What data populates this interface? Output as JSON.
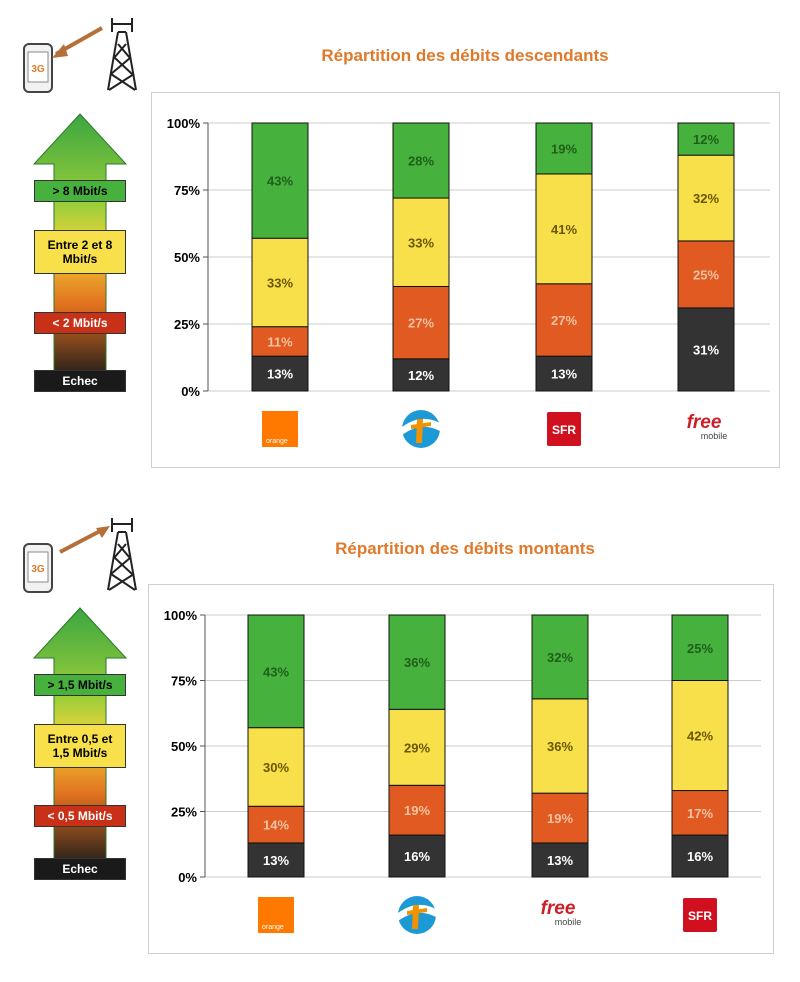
{
  "colors": {
    "high": "#46b13c",
    "high_text": "#1f5f1a",
    "mid": "#f7e04a",
    "mid_text": "#6b5600",
    "low": "#e05a22",
    "low_text": "#f4c2a0",
    "fail": "#333333",
    "fail_text": "#ffffff",
    "title": "#e07a2a"
  },
  "phone_badge": "3G",
  "chart_data": [
    {
      "type": "bar",
      "stacked": true,
      "title": "Répartition des débits descendants",
      "categories": [
        "orange",
        "bouygues",
        "SFR",
        "free mobile"
      ],
      "y_ticks": [
        "0%",
        "25%",
        "50%",
        "75%",
        "100%"
      ],
      "ylim": [
        0,
        100
      ],
      "grid": true,
      "legend_placement": "left",
      "legend": {
        "high": "> 8 Mbit/s",
        "mid_line1": "Entre 2 et 8",
        "mid_line2": "Mbit/s",
        "low": "< 2 Mbit/s",
        "fail": "Echec"
      },
      "series": [
        {
          "key": "fail",
          "values": [
            13,
            12,
            13,
            31
          ]
        },
        {
          "key": "low",
          "values": [
            11,
            27,
            27,
            25
          ]
        },
        {
          "key": "mid",
          "values": [
            33,
            33,
            41,
            32
          ]
        },
        {
          "key": "high",
          "values": [
            43,
            28,
            19,
            12
          ]
        }
      ],
      "labels": {
        "fail": [
          "13%",
          "12%",
          "13%",
          "31%"
        ],
        "low": [
          "11%",
          "27%",
          "27%",
          "25%"
        ],
        "mid": [
          "33%",
          "33%",
          "41%",
          "32%"
        ],
        "high": [
          "43%",
          "28%",
          "19%",
          "12%"
        ]
      }
    },
    {
      "type": "bar",
      "stacked": true,
      "title": "Répartition des débits montants",
      "categories": [
        "orange",
        "bouygues",
        "free mobile",
        "SFR"
      ],
      "y_ticks": [
        "0%",
        "25%",
        "50%",
        "75%",
        "100%"
      ],
      "ylim": [
        0,
        100
      ],
      "grid": true,
      "legend_placement": "left",
      "legend": {
        "high": "> 1,5 Mbit/s",
        "mid_line1": "Entre 0,5 et",
        "mid_line2": "1,5 Mbit/s",
        "low": "< 0,5 Mbit/s",
        "fail": "Echec"
      },
      "series": [
        {
          "key": "fail",
          "values": [
            13,
            16,
            13,
            16
          ]
        },
        {
          "key": "low",
          "values": [
            14,
            19,
            19,
            17
          ]
        },
        {
          "key": "mid",
          "values": [
            30,
            29,
            36,
            42
          ]
        },
        {
          "key": "high",
          "values": [
            43,
            36,
            32,
            25
          ]
        }
      ],
      "labels": {
        "fail": [
          "13%",
          "16%",
          "13%",
          "16%"
        ],
        "low": [
          "14%",
          "19%",
          "19%",
          "17%"
        ],
        "mid": [
          "30%",
          "29%",
          "36%",
          "42%"
        ],
        "high": [
          "43%",
          "36%",
          "32%",
          "25%"
        ]
      }
    }
  ],
  "logos": {
    "orange": "orange",
    "sfr": "SFR",
    "free": "free",
    "free_sub": "mobile"
  }
}
